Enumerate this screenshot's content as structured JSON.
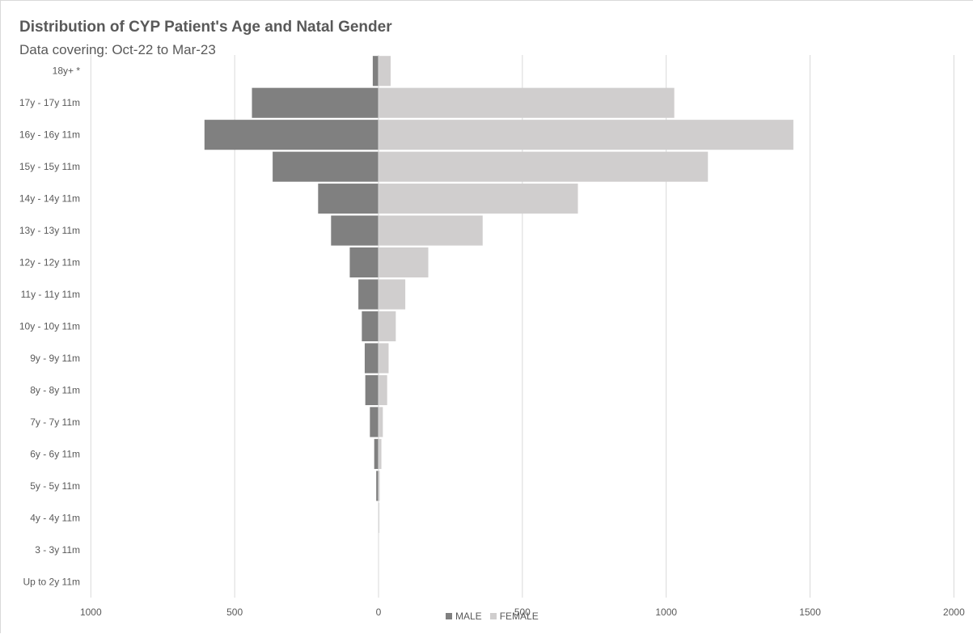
{
  "chart_data": {
    "type": "bar",
    "orientation": "horizontal",
    "layout": "population-pyramid",
    "title": "Distribution of CYP Patient's Age and Natal Gender",
    "subtitle": "Data covering: Oct-22 to Mar-23",
    "categories": [
      "18y+ *",
      "17y - 17y 11m",
      "16y - 16y 11m",
      "15y - 15y 11m",
      "14y - 14y 11m",
      "13y - 13y 11m",
      "12y - 12y 11m",
      "11y - 11y 11m",
      "10y - 10y 11m",
      "9y - 9y 11m",
      "8y - 8y 11m",
      "7y - 7y 11m",
      "6y - 6y 11m",
      "5y - 5y 11m",
      "4y - 4y 11m",
      "3 - 3y 11m",
      "Up to 2y 11m"
    ],
    "series": [
      {
        "name": "MALE",
        "color": "#808080",
        "values": [
          20,
          440,
          605,
          368,
          210,
          165,
          100,
          70,
          58,
          48,
          46,
          30,
          15,
          8,
          0,
          0,
          0
        ]
      },
      {
        "name": "FEMALE",
        "color": "#d0cece",
        "values": [
          42,
          1028,
          1442,
          1145,
          693,
          362,
          173,
          93,
          60,
          35,
          30,
          15,
          10,
          4,
          3,
          0,
          0
        ]
      }
    ],
    "x_ticks": [
      "1000",
      "500",
      "0",
      "500",
      "1000",
      "1500",
      "2000"
    ],
    "xlim": [
      -1000,
      2000
    ],
    "grid": true,
    "legend_position": "bottom"
  }
}
